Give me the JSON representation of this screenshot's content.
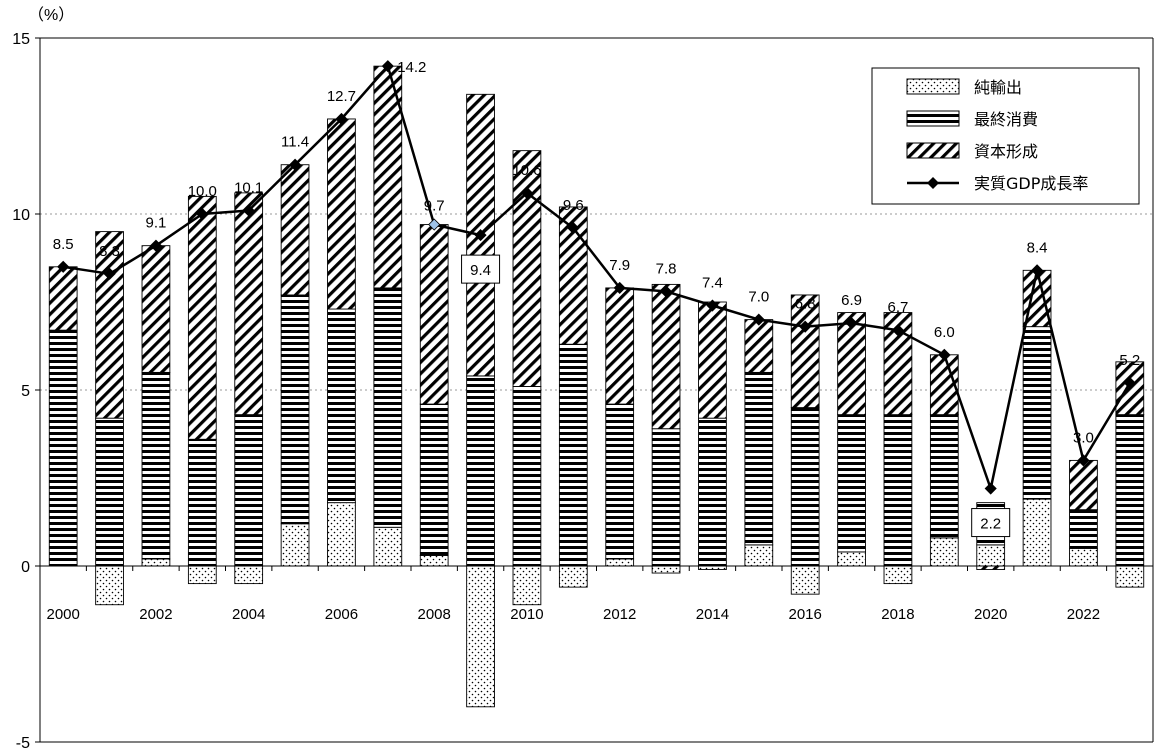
{
  "chart_data": {
    "type": "bar",
    "stacked": true,
    "unit_label": "（%）",
    "ylim": [
      -5,
      15
    ],
    "yticks": [
      -5,
      0,
      5,
      10,
      15
    ],
    "grid": {
      "horizontal_dotted": [
        5,
        10
      ]
    },
    "legend_position": "top-right",
    "x": [
      2000,
      2001,
      2002,
      2003,
      2004,
      2005,
      2006,
      2007,
      2008,
      2009,
      2010,
      2011,
      2012,
      2013,
      2014,
      2015,
      2016,
      2017,
      2018,
      2019,
      2020,
      2021,
      2022,
      2023
    ],
    "xtick_labels": [
      "2000",
      "",
      "2002",
      "",
      "2004",
      "",
      "2006",
      "",
      "2008",
      "",
      "2010",
      "",
      "2012",
      "",
      "2014",
      "",
      "2016",
      "",
      "2018",
      "",
      "2020",
      "",
      "2022",
      ""
    ],
    "series": [
      {
        "name": "純輸出",
        "kind": "bar",
        "pattern": "dots",
        "values": [
          0.0,
          -1.1,
          0.2,
          -0.5,
          -0.5,
          1.2,
          1.8,
          1.1,
          0.3,
          -4.0,
          -1.1,
          -0.6,
          0.2,
          -0.2,
          -0.1,
          0.6,
          -0.8,
          0.4,
          -0.5,
          0.8,
          0.6,
          1.9,
          0.5,
          -0.6
        ]
      },
      {
        "name": "最終消費",
        "kind": "bar",
        "pattern": "horizontal-stripes",
        "values": [
          6.7,
          4.2,
          5.3,
          3.6,
          4.3,
          6.5,
          5.5,
          6.8,
          4.3,
          5.4,
          5.1,
          6.3,
          4.4,
          3.9,
          4.2,
          4.9,
          4.5,
          3.9,
          4.3,
          3.5,
          1.2,
          4.9,
          1.1,
          4.3
        ]
      },
      {
        "name": "資本形成",
        "kind": "bar",
        "pattern": "diagonal-hatch",
        "values": [
          1.8,
          5.3,
          3.6,
          6.9,
          6.3,
          3.7,
          5.4,
          6.3,
          5.1,
          8.0,
          6.7,
          3.9,
          3.3,
          4.1,
          3.3,
          1.5,
          3.2,
          2.9,
          2.9,
          1.7,
          -0.1,
          1.6,
          1.4,
          1.5
        ]
      },
      {
        "name": "実質GDP成長率",
        "kind": "line",
        "marker": "diamond",
        "values": [
          8.5,
          8.3,
          9.1,
          10.0,
          10.1,
          11.4,
          12.7,
          14.2,
          9.7,
          9.4,
          10.6,
          9.6,
          7.9,
          7.8,
          7.4,
          7.0,
          6.8,
          6.9,
          6.7,
          6.0,
          2.2,
          8.4,
          3.0,
          5.2
        ],
        "labels": [
          "8.5",
          "8.3",
          "9.1",
          "10.0",
          "10.1",
          "11.4",
          "12.7",
          "14.2",
          "9.7",
          "9.4",
          "10.6",
          "9.6",
          "7.9",
          "7.8",
          "7.4",
          "7.0",
          "6.8",
          "6.9",
          "6.7",
          "6.0",
          "2.2",
          "8.4",
          "3.0",
          "5.2"
        ],
        "boxed_labels": [
          2009,
          2020
        ]
      }
    ],
    "colors": {
      "line": "#000000",
      "bar_fill": "#ffffff",
      "pattern": "#000000",
      "grid": "#9a9a9a"
    }
  }
}
